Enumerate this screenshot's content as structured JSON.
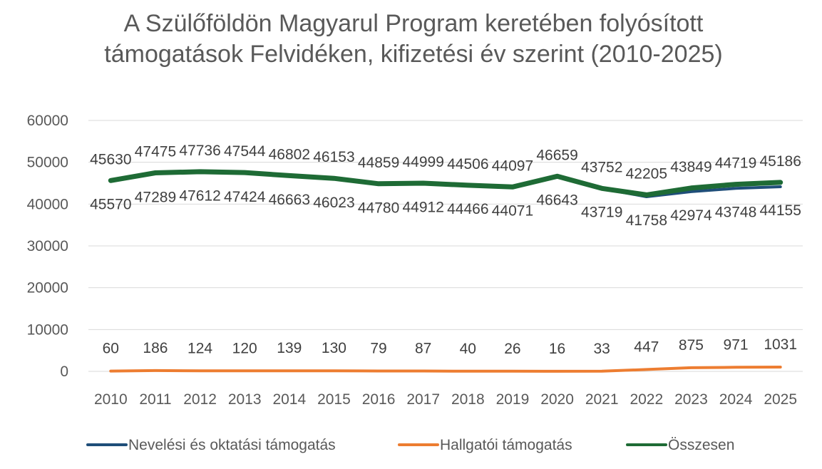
{
  "chart_data": {
    "type": "line",
    "title": "A Szülőföldön Magyarul Program keretében folyósított támogatások Felvidéken, kifizetési év szerint (2010-2025)",
    "categories": [
      "2010",
      "2011",
      "2012",
      "2013",
      "2014",
      "2015",
      "2016",
      "2017",
      "2018",
      "2019",
      "2020",
      "2021",
      "2022",
      "2023",
      "2024",
      "2025"
    ],
    "ylim": [
      0,
      60000
    ],
    "yticks": [
      0,
      10000,
      20000,
      30000,
      40000,
      50000,
      60000
    ],
    "grid": true,
    "legend_position": "bottom",
    "series": [
      {
        "name": "Nevelési és oktatási támogatás",
        "color": "#1f4e79",
        "values": [
          45570,
          47289,
          47612,
          47424,
          46663,
          46023,
          44780,
          44912,
          44466,
          44071,
          46643,
          43719,
          41758,
          42974,
          43748,
          44155
        ]
      },
      {
        "name": "Hallgatói támogatás",
        "color": "#ed7d31",
        "values": [
          60,
          186,
          124,
          120,
          139,
          130,
          79,
          87,
          40,
          26,
          16,
          33,
          447,
          875,
          971,
          1031
        ]
      },
      {
        "name": "Összesen",
        "color": "#1e6b35",
        "values": [
          45630,
          47475,
          47736,
          47544,
          46802,
          46153,
          44859,
          44999,
          44506,
          44097,
          46659,
          43752,
          42205,
          43849,
          44719,
          45186
        ]
      }
    ]
  }
}
